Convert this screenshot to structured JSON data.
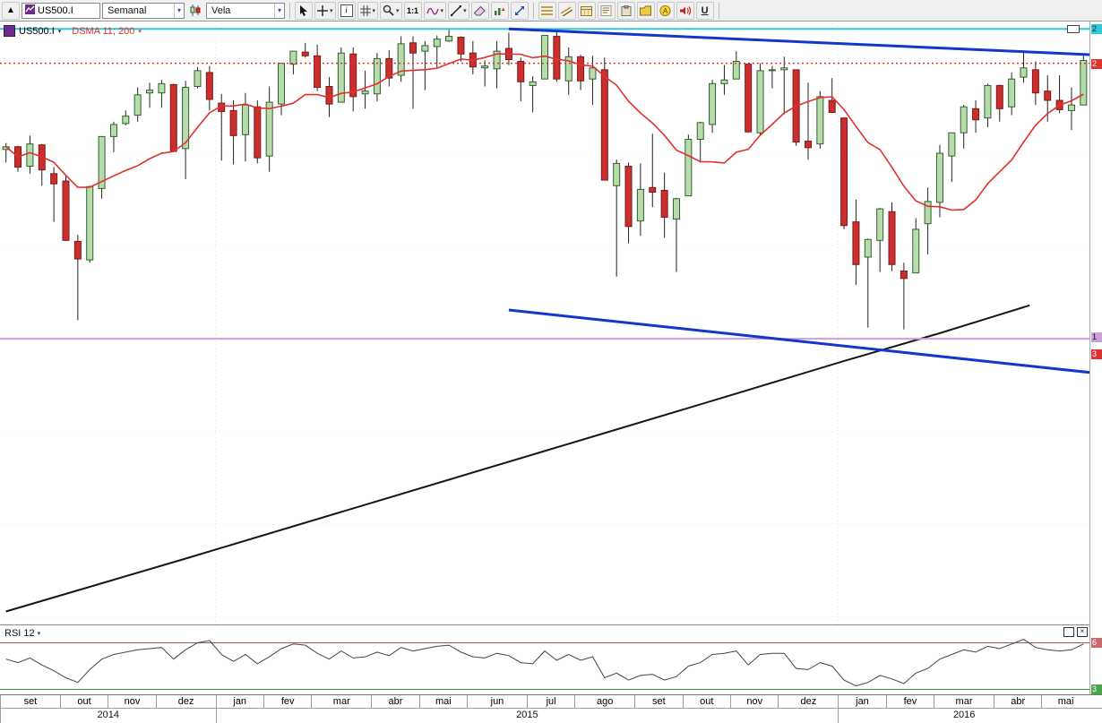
{
  "toolbar": {
    "collapse_glyph": "▲",
    "symbol_value": "US500.I",
    "timeframe_value": "Semanal",
    "chart_type_value": "Vela",
    "one_to_one_label": "1:1",
    "underline_label": "U",
    "info_label": "i"
  },
  "legend": {
    "symbol": "US500.I",
    "indicator": "DSMA 11; 200"
  },
  "rsi_panel": {
    "label": "RSI 12"
  },
  "price_axis": {
    "labels": [
      {
        "text": "2",
        "price": 2134,
        "bg": "#2ec8d8",
        "fg": "#00353a"
      },
      {
        "text": "2",
        "price": 2097,
        "bg": "#e03030",
        "fg": "#ffffff"
      },
      {
        "text": "1",
        "price": 1802,
        "bg": "#c9a0dc",
        "fg": "#2a0a3a"
      },
      {
        "text": "3",
        "price": 1784,
        "bg": "#e03030",
        "fg": "#ffffff"
      }
    ],
    "rsi_labels": [
      {
        "text": "6",
        "value": 70,
        "bg": "#c96a6a",
        "fg": "#ffffff"
      },
      {
        "text": "3",
        "value": 30,
        "bg": "#4aa54a",
        "fg": "#ffffff"
      }
    ]
  },
  "chart_data": {
    "type": "candlestick",
    "symbol": "US500.I",
    "timeframe": "Semanal",
    "ylim": [
      1492,
      2142
    ],
    "grid": {
      "prices": [
        2100,
        2000,
        1900,
        1800,
        1700,
        1600,
        1500
      ]
    },
    "colors": {
      "up_fill": "#b7dcab",
      "up_stroke": "#33602f",
      "down_fill": "#cc2e2e",
      "down_stroke": "#7c1a1a",
      "wick": "#222222"
    },
    "months": [
      {
        "label": "set",
        "count": 5
      },
      {
        "label": "out",
        "count": 4
      },
      {
        "label": "nov",
        "count": 4
      },
      {
        "label": "dez",
        "count": 5
      },
      {
        "label": "jan",
        "count": 4
      },
      {
        "label": "fev",
        "count": 4
      },
      {
        "label": "mar",
        "count": 5
      },
      {
        "label": "abr",
        "count": 4
      },
      {
        "label": "mai",
        "count": 4
      },
      {
        "label": "jun",
        "count": 5
      },
      {
        "label": "jul",
        "count": 4
      },
      {
        "label": "ago",
        "count": 5
      },
      {
        "label": "set",
        "count": 4
      },
      {
        "label": "out",
        "count": 4
      },
      {
        "label": "nov",
        "count": 4
      },
      {
        "label": "dez",
        "count": 5
      },
      {
        "label": "jan",
        "count": 4
      },
      {
        "label": "fev",
        "count": 4
      },
      {
        "label": "mar",
        "count": 5
      },
      {
        "label": "abr",
        "count": 4
      },
      {
        "label": "mai",
        "count": 4
      }
    ],
    "years": [
      {
        "label": "2014",
        "span": 18
      },
      {
        "label": "2015",
        "span": 52
      },
      {
        "label": "2016",
        "span": 21
      }
    ],
    "candles": [
      [
        2004,
        2011,
        1990,
        2007
      ],
      [
        2007,
        2008,
        1980,
        1985
      ],
      [
        1986,
        2019,
        1978,
        2010
      ],
      [
        2009,
        2010,
        1965,
        1982
      ],
      [
        1978,
        1985,
        1926,
        1967
      ],
      [
        1970,
        1977,
        1906,
        1906
      ],
      [
        1905,
        1912,
        1820,
        1886
      ],
      [
        1885,
        1965,
        1882,
        1964
      ],
      [
        1962,
        2018,
        1951,
        2018
      ],
      [
        2018,
        2034,
        2001,
        2031
      ],
      [
        2032,
        2046,
        2030,
        2040
      ],
      [
        2041,
        2071,
        2034,
        2063
      ],
      [
        2065,
        2076,
        2049,
        2068
      ],
      [
        2065,
        2079,
        2049,
        2075
      ],
      [
        2074,
        2075,
        2002,
        2002
      ],
      [
        2005,
        2078,
        1972,
        2071
      ],
      [
        2072,
        2093,
        2070,
        2089
      ],
      [
        2087,
        2094,
        2046,
        2058
      ],
      [
        2054,
        2064,
        1992,
        2045
      ],
      [
        2046,
        2057,
        1988,
        2019
      ],
      [
        2020,
        2065,
        1991,
        2052
      ],
      [
        2050,
        2057,
        1989,
        1995
      ],
      [
        1997,
        2072,
        1980,
        2055
      ],
      [
        2053,
        2097,
        2041,
        2097
      ],
      [
        2096,
        2110,
        2085,
        2110
      ],
      [
        2109,
        2119,
        2103,
        2105
      ],
      [
        2105,
        2117,
        2067,
        2071
      ],
      [
        2072,
        2082,
        2039,
        2053
      ],
      [
        2055,
        2114,
        2055,
        2108
      ],
      [
        2107,
        2114,
        2045,
        2061
      ],
      [
        2064,
        2089,
        2048,
        2067
      ],
      [
        2064,
        2108,
        2056,
        2102
      ],
      [
        2102,
        2111,
        2072,
        2081
      ],
      [
        2084,
        2126,
        2077,
        2118
      ],
      [
        2119,
        2126,
        2048,
        2108
      ],
      [
        2110,
        2121,
        2068,
        2116
      ],
      [
        2115,
        2127,
        2092,
        2123
      ],
      [
        2121,
        2134,
        2120,
        2126
      ],
      [
        2125,
        2126,
        2099,
        2107
      ],
      [
        2108,
        2121,
        2085,
        2093
      ],
      [
        2092,
        2100,
        2072,
        2094
      ],
      [
        2091,
        2121,
        2070,
        2110
      ],
      [
        2113,
        2130,
        2095,
        2101
      ],
      [
        2099,
        2103,
        2056,
        2077
      ],
      [
        2073,
        2083,
        2044,
        2077
      ],
      [
        2080,
        2127,
        2080,
        2127
      ],
      [
        2126,
        2133,
        2077,
        2080
      ],
      [
        2078,
        2114,
        2063,
        2104
      ],
      [
        2104,
        2106,
        2068,
        2078
      ],
      [
        2080,
        2105,
        2052,
        2092
      ],
      [
        2090,
        2103,
        1971,
        1971
      ],
      [
        1965,
        1993,
        1867,
        1989
      ],
      [
        1986,
        1990,
        1903,
        1921
      ],
      [
        1927,
        1989,
        1911,
        1961
      ],
      [
        1963,
        2021,
        1942,
        1958
      ],
      [
        1960,
        1979,
        1909,
        1931
      ],
      [
        1929,
        1952,
        1872,
        1951
      ],
      [
        1954,
        2020,
        1954,
        2015
      ],
      [
        2015,
        2034,
        1990,
        2033
      ],
      [
        2031,
        2079,
        2022,
        2075
      ],
      [
        2075,
        2095,
        2063,
        2079
      ],
      [
        2080,
        2110,
        2080,
        2099
      ],
      [
        2096,
        2097,
        2022,
        2023
      ],
      [
        2022,
        2097,
        2019,
        2089
      ],
      [
        2089,
        2094,
        2070,
        2090
      ],
      [
        2090,
        2104,
        2042,
        2092
      ],
      [
        2090,
        2090,
        2008,
        2012
      ],
      [
        2013,
        2076,
        1993,
        2006
      ],
      [
        2010,
        2067,
        2005,
        2061
      ],
      [
        2057,
        2081,
        2043,
        2044
      ],
      [
        2038,
        2038,
        1918,
        1922
      ],
      [
        1926,
        1950,
        1858,
        1880
      ],
      [
        1888,
        1908,
        1812,
        1907
      ],
      [
        1906,
        1941,
        1872,
        1940
      ],
      [
        1937,
        1947,
        1873,
        1880
      ],
      [
        1873,
        1882,
        1810,
        1865
      ],
      [
        1871,
        1930,
        1871,
        1918
      ],
      [
        1924,
        1963,
        1891,
        1948
      ],
      [
        1947,
        2009,
        1931,
        2000
      ],
      [
        1997,
        2022,
        1969,
        2022
      ],
      [
        2022,
        2052,
        2005,
        2050
      ],
      [
        2048,
        2057,
        2022,
        2036
      ],
      [
        2038,
        2075,
        2028,
        2073
      ],
      [
        2073,
        2074,
        2034,
        2048
      ],
      [
        2050,
        2087,
        2041,
        2080
      ],
      [
        2082,
        2111,
        2076,
        2092
      ],
      [
        2090,
        2099,
        2052,
        2065
      ],
      [
        2067,
        2084,
        2034,
        2057
      ],
      [
        2057,
        2084,
        2043,
        2047
      ],
      [
        2046,
        2071,
        2025,
        2052
      ],
      [
        2052,
        2105,
        2052,
        2100
      ]
    ],
    "overlays": {
      "sma_red": {
        "name": "sma-11-line",
        "period": 11,
        "color": "#e03030"
      },
      "sma_black": {
        "name": "sma-200-line",
        "color": "#161616",
        "points": [
          [
            0,
            1506
          ],
          [
            15,
            1563
          ],
          [
            30,
            1621
          ],
          [
            45,
            1679
          ],
          [
            60,
            1737
          ],
          [
            70,
            1776
          ],
          [
            78,
            1806
          ],
          [
            83,
            1826
          ],
          [
            85.5,
            1836
          ]
        ]
      },
      "hlines": [
        {
          "name": "high-resistance-line",
          "price": 2134,
          "color": "#2ec8d8",
          "style": "solid",
          "width": 2
        },
        {
          "name": "current-price-line",
          "price": 2097,
          "color": "#e03030",
          "style": "dotted",
          "width": 1.5
        },
        {
          "name": "support-line",
          "price": 1800,
          "color": "#c9a0dc",
          "style": "solid",
          "width": 2
        }
      ],
      "trendlines": [
        {
          "name": "upper-channel-trendline",
          "from": [
            42,
            2134
          ],
          "to": [
            91,
            2106
          ],
          "color": "#1536cc",
          "width": 3
        },
        {
          "name": "lower-channel-trendline",
          "from": [
            42,
            1831
          ],
          "to": [
            91,
            1763
          ],
          "color": "#1536cc",
          "width": 3
        }
      ]
    },
    "rsi": {
      "period": 12,
      "ylim": [
        25,
        85
      ],
      "levels": [
        {
          "value": 70,
          "color": "#b05050"
        },
        {
          "value": 30,
          "color": "#3a9a3a"
        }
      ],
      "values": [
        56,
        53,
        57,
        51,
        46,
        40,
        36,
        47,
        56,
        60,
        62,
        64,
        65,
        66,
        56,
        64,
        70,
        72,
        60,
        54,
        60,
        52,
        58,
        65,
        69,
        68,
        61,
        56,
        63,
        57,
        58,
        62,
        59,
        66,
        63,
        65,
        67,
        68,
        62,
        58,
        57,
        61,
        59,
        53,
        52,
        63,
        55,
        60,
        55,
        58,
        40,
        44,
        38,
        42,
        43,
        38,
        41,
        50,
        53,
        60,
        61,
        63,
        51,
        60,
        61,
        61,
        48,
        47,
        53,
        50,
        38,
        33,
        36,
        42,
        39,
        35,
        44,
        48,
        56,
        60,
        64,
        62,
        67,
        65,
        69,
        73,
        66,
        64,
        63,
        64,
        69
      ]
    }
  }
}
